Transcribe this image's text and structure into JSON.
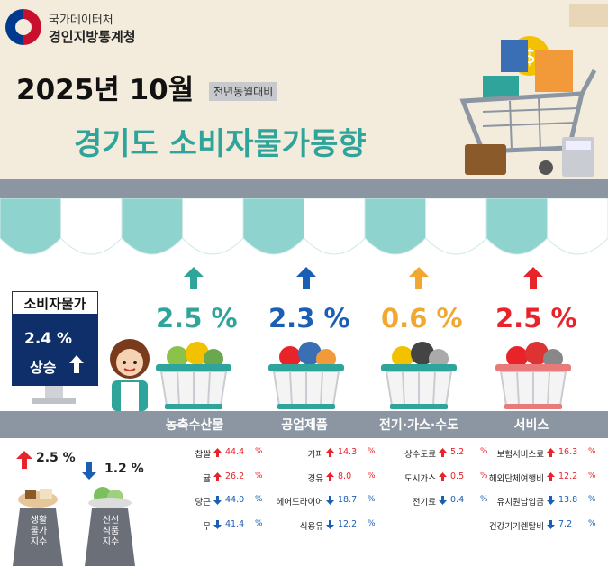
{
  "header": {
    "org_line1": "국가데이터처",
    "org_line2": "경인지방통계청",
    "date": "2025년 10월",
    "badge": "전년동월대비",
    "title": "경기도 소비자물가동향"
  },
  "cpi": {
    "label": "소비자물가",
    "value": "2.4  %",
    "trend": "상승"
  },
  "categories": [
    {
      "name": "농축수산물",
      "pct": "2.5 %",
      "color": "#2fa49a"
    },
    {
      "name": "공업제품",
      "pct": "2.3 %",
      "color": "#1a5fb4"
    },
    {
      "name": "전기·가스·수도",
      "pct": "0.6 %",
      "color": "#f0a830"
    },
    {
      "name": "서비스",
      "pct": "2.5 %",
      "color": "#e8242a"
    }
  ],
  "sub_indices": [
    {
      "label_lines": [
        "생활",
        "물가",
        "지수"
      ],
      "value": "2.5 %",
      "direction": "up"
    },
    {
      "label_lines": [
        "신선",
        "식품",
        "지수"
      ],
      "value": "1.2 %",
      "direction": "down"
    }
  ],
  "items": [
    [
      {
        "name": "찹쌀",
        "dir": "up",
        "value": "44.4",
        "unit": "%"
      },
      {
        "name": "귤",
        "dir": "up",
        "value": "26.2",
        "unit": "%"
      },
      {
        "name": "당근",
        "dir": "down",
        "value": "44.0",
        "unit": "%"
      },
      {
        "name": "무",
        "dir": "down",
        "value": "41.4",
        "unit": "%"
      }
    ],
    [
      {
        "name": "커피",
        "dir": "up",
        "value": "14.3",
        "unit": "%"
      },
      {
        "name": "경유",
        "dir": "up",
        "value": "8.0",
        "unit": "%"
      },
      {
        "name": "헤어드라이어",
        "dir": "down",
        "value": "18.7",
        "unit": "%"
      },
      {
        "name": "식용유",
        "dir": "down",
        "value": "12.2",
        "unit": "%"
      }
    ],
    [
      {
        "name": "상수도료",
        "dir": "up",
        "value": "5.2",
        "unit": "%"
      },
      {
        "name": "도시가스",
        "dir": "up",
        "value": "0.5",
        "unit": "%"
      },
      {
        "name": "전기료",
        "dir": "down",
        "value": "0.4",
        "unit": "%"
      }
    ],
    [
      {
        "name": "보험서비스료",
        "dir": "up",
        "value": "16.3",
        "unit": "%"
      },
      {
        "name": "해외단체여행비",
        "dir": "up",
        "value": "12.2",
        "unit": "%"
      },
      {
        "name": "유치원납입금",
        "dir": "down",
        "value": "13.8",
        "unit": "%"
      },
      {
        "name": "건강기기렌탈비",
        "dir": "down",
        "value": "7.2",
        "unit": "%"
      }
    ]
  ],
  "colors": {
    "up": "#e8242a",
    "down": "#1a5fb4",
    "teal": "#2fa49a",
    "navy": "#0f2f6b"
  },
  "icons": [
    "government-logo-icon",
    "shopping-cart-icon",
    "up-arrow-icon",
    "down-arrow-icon",
    "basket-icon",
    "shopkeeper-icon",
    "scale-icon"
  ]
}
